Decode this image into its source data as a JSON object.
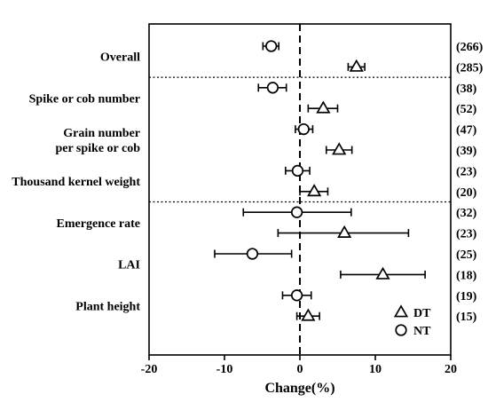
{
  "chart_data": {
    "type": "forest",
    "xlabel": "Change(%)",
    "xlim": [
      -20,
      20
    ],
    "xticks": [
      -20,
      -10,
      0,
      10,
      20
    ],
    "reference_line_x": 0,
    "groups": [
      "Overall",
      "Spike or cob number",
      "Grain number\nper spike or cob",
      "Thousand kernel weight",
      "Emergence rate",
      "LAI",
      "Plant height"
    ],
    "group_lines": [
      [
        "Overall"
      ],
      [
        "Spike or cob number"
      ],
      [
        "Grain number",
        "per spike or cob"
      ],
      [
        "Thousand kernel weight"
      ],
      [
        "Emergence rate"
      ],
      [
        "LAI"
      ],
      [
        "Plant height"
      ]
    ],
    "separators_after_group": [
      "Overall",
      "Thousand kernel weight"
    ],
    "legend": {
      "placement": "bottom-right",
      "entries": [
        {
          "series": "DT",
          "marker": "triangle"
        },
        {
          "series": "NT",
          "marker": "circle"
        }
      ]
    },
    "series": [
      {
        "name": "NT",
        "marker": "circle",
        "points": [
          {
            "group": "Overall",
            "value": -3.8,
            "low": -4.9,
            "high": -2.8,
            "n": "(266)"
          },
          {
            "group": "Spike or cob number",
            "value": -3.6,
            "low": -5.5,
            "high": -1.8,
            "n": "(38)"
          },
          {
            "group": "Grain number\nper spike or cob",
            "value": 0.5,
            "low": -0.6,
            "high": 1.7,
            "n": "(47)"
          },
          {
            "group": "Thousand kernel weight",
            "value": -0.3,
            "low": -1.9,
            "high": 1.3,
            "n": "(23)"
          },
          {
            "group": "Emergence rate",
            "value": -0.4,
            "low": -7.5,
            "high": 6.8,
            "n": "(32)"
          },
          {
            "group": "LAI",
            "value": -6.3,
            "low": -11.3,
            "high": -1.1,
            "n": "(25)"
          },
          {
            "group": "Plant height",
            "value": -0.4,
            "low": -2.3,
            "high": 1.5,
            "n": "(19)"
          }
        ]
      },
      {
        "name": "DT",
        "marker": "triangle",
        "points": [
          {
            "group": "Overall",
            "value": 7.5,
            "low": 6.4,
            "high": 8.6,
            "n": "(285)"
          },
          {
            "group": "Spike or cob number",
            "value": 3.1,
            "low": 1.1,
            "high": 5.0,
            "n": "(52)"
          },
          {
            "group": "Grain number\nper spike or cob",
            "value": 5.2,
            "low": 3.5,
            "high": 6.9,
            "n": "(39)"
          },
          {
            "group": "Thousand kernel weight",
            "value": 1.9,
            "low": 0.0,
            "high": 3.7,
            "n": "(20)"
          },
          {
            "group": "Emergence rate",
            "value": 5.9,
            "low": -2.9,
            "high": 14.4,
            "n": "(23)"
          },
          {
            "group": "LAI",
            "value": 11.0,
            "low": 5.4,
            "high": 16.6,
            "n": "(18)"
          },
          {
            "group": "Plant height",
            "value": 1.1,
            "low": -0.4,
            "high": 2.6,
            "n": "(15)"
          }
        ]
      }
    ]
  }
}
